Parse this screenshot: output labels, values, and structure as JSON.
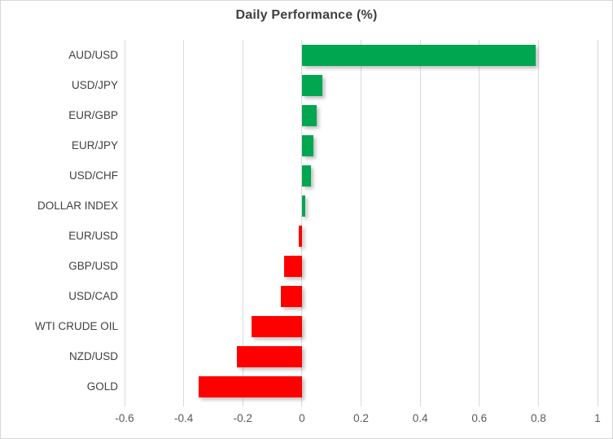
{
  "title": "Daily Performance (%)",
  "colors": {
    "positive_bar": "#00A650",
    "negative_bar": "#FF0000",
    "gridline": "#D9D9D9",
    "title_text": "#404040",
    "category_text": "#404040",
    "tick_text": "#595959",
    "frame_border": "#D7D7D7",
    "background": "#FFFFFF"
  },
  "chart_data": {
    "type": "bar",
    "orientation": "horizontal",
    "title": "Daily Performance (%)",
    "categories": [
      "AUD/USD",
      "USD/JPY",
      "EUR/GBP",
      "EUR/JPY",
      "USD/CHF",
      "DOLLAR INDEX",
      "EUR/USD",
      "GBP/USD",
      "USD/CAD",
      "WTI CRUDE OIL",
      "NZD/USD",
      "GOLD"
    ],
    "values": [
      0.79,
      0.07,
      0.05,
      0.04,
      0.03,
      0.01,
      -0.01,
      -0.06,
      -0.07,
      -0.17,
      -0.22,
      -0.35
    ],
    "xlabel": "",
    "ylabel": "",
    "xlim": [
      -0.6,
      1.0
    ],
    "xticks": [
      "-0.6",
      "-0.4",
      "-0.2",
      "0",
      "0.2",
      "0.4",
      "0.6",
      "0.8",
      "1"
    ],
    "xtick_values": [
      -0.6,
      -0.4,
      -0.2,
      0,
      0.2,
      0.4,
      0.6,
      0.8,
      1
    ],
    "grid": "vertical-major",
    "legend": "none",
    "value_rule": "positive=green, negative=red"
  }
}
